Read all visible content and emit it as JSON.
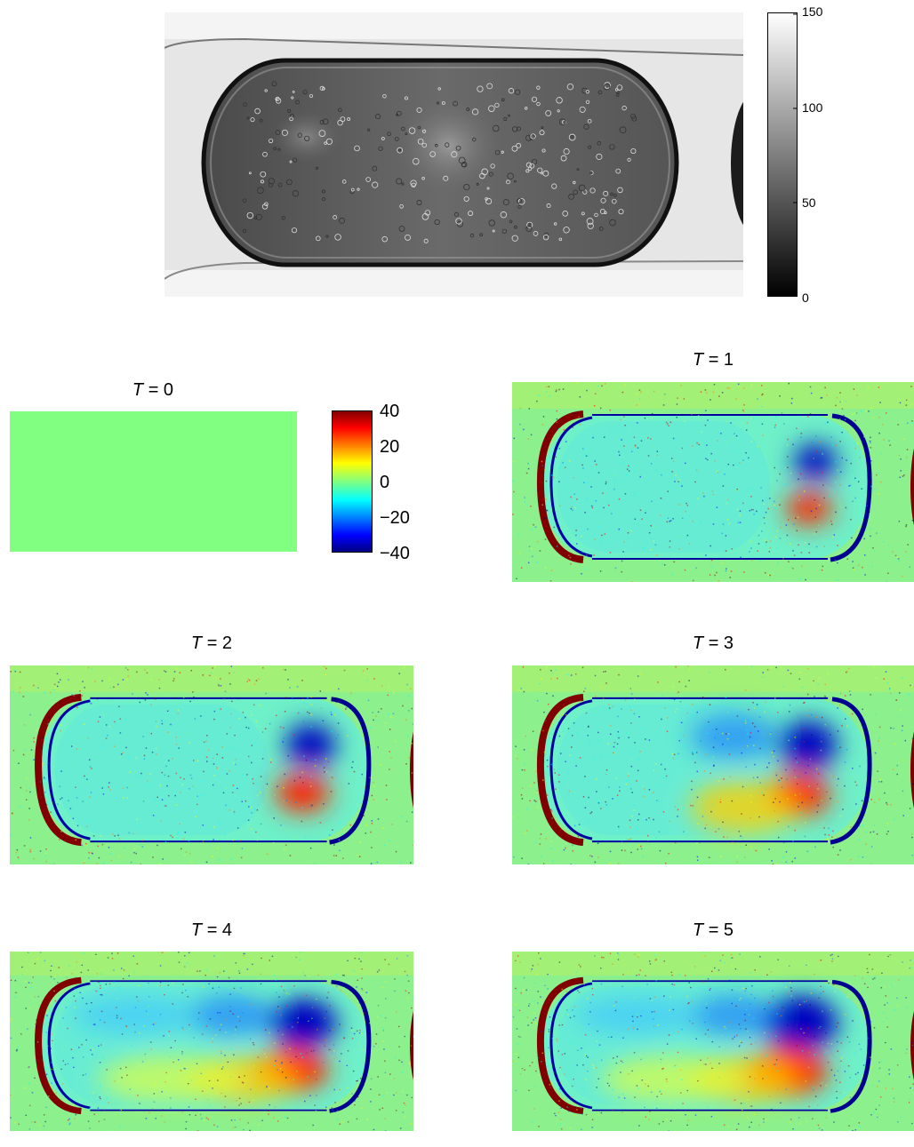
{
  "grayscale_colorbar": {
    "ticks": [
      "150",
      "100",
      "50",
      "0"
    ],
    "colors": [
      "#ffffff",
      "#000000"
    ]
  },
  "jet_colorbar": {
    "ticks": [
      "40",
      "20",
      "0",
      "−20",
      "−40"
    ],
    "colors": [
      "#800000",
      "#ff0000",
      "#ffff00",
      "#80ff80",
      "#00ffff",
      "#0000ff",
      "#000080"
    ]
  },
  "panels": [
    {
      "var": "T",
      "eq": " = 0"
    },
    {
      "var": "T",
      "eq": " = 1"
    },
    {
      "var": "T",
      "eq": " = 2"
    },
    {
      "var": "T",
      "eq": " = 3"
    },
    {
      "var": "T",
      "eq": " = 4"
    },
    {
      "var": "T",
      "eq": " = 5"
    }
  ]
}
